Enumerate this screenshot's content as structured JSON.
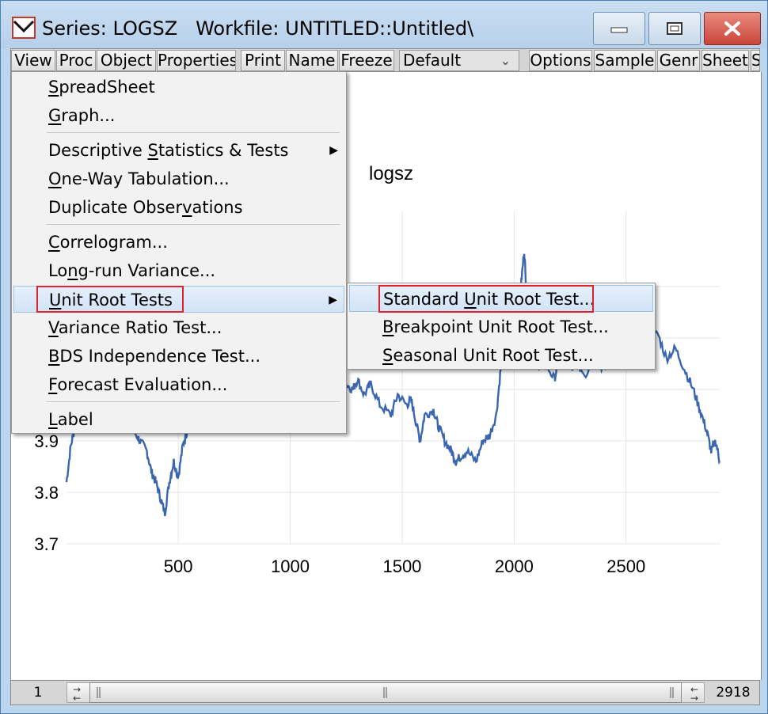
{
  "window": {
    "title": "Series: LOGSZ   Workfile: UNTITLED::Untitled\\",
    "app_icon": "eviews-series-icon",
    "controls": {
      "minimize": "minimize-icon",
      "maximize": "maximize-icon",
      "close": "close-icon"
    }
  },
  "toolbar": {
    "buttons": [
      "View",
      "Proc",
      "Object",
      "Properties",
      "Print",
      "Name",
      "Freeze"
    ],
    "view_dropdown": "Default",
    "right_buttons": [
      "Options",
      "Sample",
      "Genr",
      "Sheet",
      "S"
    ]
  },
  "view_menu": {
    "items": [
      {
        "pre": "",
        "ul": "S",
        "post": "preadSheet"
      },
      {
        "pre": "",
        "ul": "G",
        "post": "raph..."
      },
      {
        "pre": "Descriptive ",
        "ul": "S",
        "post": "tatistics & Tests"
      },
      {
        "pre": "",
        "ul": "O",
        "post": "ne-Way Tabulation..."
      },
      {
        "pre": "Duplicate Obser",
        "ul": "v",
        "post": "ations"
      },
      {
        "pre": "",
        "ul": "C",
        "post": "orrelogram..."
      },
      {
        "pre": "Lo",
        "ul": "n",
        "post": "g-run Variance..."
      },
      {
        "pre": "",
        "ul": "U",
        "post": "nit Root Tests"
      },
      {
        "pre": "",
        "ul": "V",
        "post": "ariance Ratio Test..."
      },
      {
        "pre": "",
        "ul": "B",
        "post": "DS Independence Test..."
      },
      {
        "pre": "",
        "ul": "F",
        "post": "orecast Evaluation..."
      },
      {
        "pre": "",
        "ul": "L",
        "post": "abel"
      }
    ]
  },
  "submenu": {
    "items": [
      {
        "pre": "Standard ",
        "ul": "U",
        "post": "nit Root Test..."
      },
      {
        "pre": "",
        "ul": "B",
        "post": "reakpoint Unit Root Test..."
      },
      {
        "pre": "",
        "ul": "S",
        "post": "easonal Unit Root Test..."
      }
    ]
  },
  "chart_data": {
    "type": "line",
    "title": "logsz",
    "xlabel": "",
    "ylabel": "",
    "x_ticks": [
      "500",
      "1000",
      "1500",
      "2000",
      "2500"
    ],
    "y_ticks_visible": [
      "3.7",
      "3.8",
      "3.9"
    ],
    "xlim": [
      1,
      2918
    ],
    "ylim": [
      3.7,
      4.3
    ],
    "grid": true,
    "series_color": "#3a66b0",
    "series": [
      {
        "name": "",
        "points": [
          [
            1,
            3.82
          ],
          [
            20,
            3.89
          ],
          [
            40,
            3.93
          ],
          [
            60,
            3.96
          ],
          [
            120,
            4.0
          ],
          [
            180,
            4.0
          ],
          [
            230,
            3.95
          ],
          [
            260,
            3.94
          ],
          [
            300,
            3.92
          ],
          [
            330,
            3.9
          ],
          [
            360,
            3.88
          ],
          [
            380,
            3.84
          ],
          [
            400,
            3.82
          ],
          [
            420,
            3.79
          ],
          [
            440,
            3.76
          ],
          [
            460,
            3.82
          ],
          [
            480,
            3.86
          ],
          [
            500,
            3.83
          ],
          [
            520,
            3.89
          ],
          [
            540,
            3.92
          ],
          [
            560,
            3.95
          ],
          [
            600,
            3.97
          ],
          [
            700,
            4.0
          ],
          [
            800,
            4.05
          ],
          [
            900,
            4.08
          ],
          [
            1000,
            4.06
          ],
          [
            1100,
            4.05
          ],
          [
            1200,
            4.03
          ],
          [
            1250,
            4.01
          ],
          [
            1280,
            4.0
          ],
          [
            1300,
            4.02
          ],
          [
            1330,
            3.99
          ],
          [
            1360,
            4.01
          ],
          [
            1400,
            3.97
          ],
          [
            1450,
            3.95
          ],
          [
            1480,
            3.99
          ],
          [
            1520,
            3.97
          ],
          [
            1540,
            3.98
          ],
          [
            1560,
            3.94
          ],
          [
            1580,
            3.9
          ],
          [
            1600,
            3.95
          ],
          [
            1640,
            3.96
          ],
          [
            1660,
            3.93
          ],
          [
            1690,
            3.9
          ],
          [
            1720,
            3.88
          ],
          [
            1740,
            3.86
          ],
          [
            1760,
            3.87
          ],
          [
            1790,
            3.88
          ],
          [
            1830,
            3.86
          ],
          [
            1860,
            3.9
          ],
          [
            1890,
            3.91
          ],
          [
            1920,
            3.95
          ],
          [
            1940,
            4.04
          ],
          [
            1960,
            4.1
          ],
          [
            1990,
            4.12
          ],
          [
            2010,
            4.15
          ],
          [
            2030,
            4.2
          ],
          [
            2045,
            4.27
          ],
          [
            2055,
            4.19
          ],
          [
            2070,
            4.14
          ],
          [
            2090,
            4.08
          ],
          [
            2110,
            4.04
          ],
          [
            2140,
            4.05
          ],
          [
            2180,
            4.02
          ],
          [
            2200,
            4.06
          ],
          [
            2240,
            4.04
          ],
          [
            2280,
            4.05
          ],
          [
            2320,
            4.03
          ],
          [
            2360,
            4.06
          ],
          [
            2400,
            4.04
          ],
          [
            2440,
            4.05
          ],
          [
            2480,
            4.06
          ],
          [
            2520,
            4.08
          ],
          [
            2560,
            4.1
          ],
          [
            2600,
            4.09
          ],
          [
            2640,
            4.11
          ],
          [
            2680,
            4.06
          ],
          [
            2720,
            4.08
          ],
          [
            2760,
            4.04
          ],
          [
            2800,
            4.0
          ],
          [
            2830,
            3.96
          ],
          [
            2860,
            3.92
          ],
          [
            2880,
            3.88
          ],
          [
            2900,
            3.9
          ],
          [
            2918,
            3.86
          ]
        ]
      }
    ]
  },
  "statusbar": {
    "left": "1",
    "right": "2918"
  }
}
